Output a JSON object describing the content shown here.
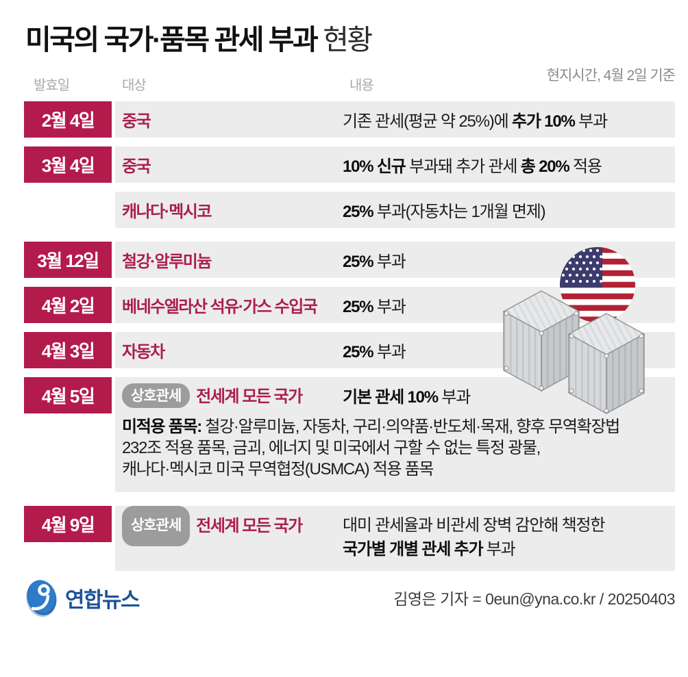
{
  "header": {
    "title": "미국의 국가·품목 관세 부과",
    "title_suffix": "현황",
    "timestamp": "현지시간, 4월 2일 기준",
    "columns": {
      "date": "발효일",
      "target": "대상",
      "content": "내용"
    }
  },
  "rows": [
    {
      "date": "2월 4일",
      "target": "중국",
      "type": "normal",
      "content": [
        {
          "t": "기존 관세(평균 약 25%)에 "
        },
        {
          "t": "추가 10%",
          "b": true
        },
        {
          "t": " 부과"
        }
      ]
    },
    {
      "date": "3월 4일",
      "target": "중국",
      "type": "normal",
      "content": [
        {
          "t": "10% 신규",
          "b": true
        },
        {
          "t": " 부과돼 추가 관세 "
        },
        {
          "t": "총 20%",
          "b": true
        },
        {
          "t": " 적용"
        }
      ]
    },
    {
      "date": null,
      "target": "캐나다·멕시코",
      "type": "normal",
      "content": [
        {
          "t": "25%",
          "b": true
        },
        {
          "t": " 부과(자동차는 1개월 면제)"
        }
      ]
    },
    {
      "date": "3월 12일",
      "target": "철강·알루미늄",
      "type": "normal",
      "content": [
        {
          "t": "25%",
          "b": true
        },
        {
          "t": " 부과"
        }
      ]
    },
    {
      "date": "4월 2일",
      "target": "베네수엘라산 석유·가스 수입국",
      "type": "normal",
      "content": [
        {
          "t": "25%",
          "b": true
        },
        {
          "t": " 부과"
        }
      ]
    },
    {
      "date": "4월 3일",
      "target": "자동차",
      "type": "normal",
      "content": [
        {
          "t": "25%",
          "b": true
        },
        {
          "t": " 부과"
        }
      ]
    },
    {
      "date": "4월 5일",
      "pill": "상호관세",
      "target": "전세계 모든 국가",
      "type": "note",
      "content": [
        {
          "t": "기본 관세 10%",
          "b": true
        },
        {
          "t": " 부과"
        }
      ],
      "note": [
        {
          "t": "미적용 품목:",
          "b": true
        },
        {
          "t": " 철강·알루미늄, 자동차, 구리·의약품·반도체·목재, 향후 무역확장법"
        },
        {
          "br": true
        },
        {
          "t": "232조 적용 품목, 금괴, 에너지 및 미국에서 구할 수 없는 특정 광물,"
        },
        {
          "br": true
        },
        {
          "t": "캐나다·멕시코 미국 무역협정(USMCA) 적용 품목"
        }
      ]
    },
    {
      "date": "4월 9일",
      "pill": "상호관세",
      "target": "전세계 모든 국가",
      "type": "twoline",
      "content": [
        {
          "t": "대미 관세율과 비관세 장벽 감안해 책정한"
        },
        {
          "br": true
        },
        {
          "t": "국가별 개별 관세 추가",
          "b": true
        },
        {
          "t": " 부과"
        }
      ]
    }
  ],
  "footer": {
    "agency": "연합뉴스",
    "byline": "김영은 기자 = 0eun@yna.co.kr / 20250403"
  },
  "colors": {
    "accent_crimson": "#b31b4d",
    "target_text": "#ab1e4d",
    "row_background": "#ececec",
    "pill_gray": "#9c9c9c",
    "flag_red": "#b22234",
    "flag_navy": "#3c3b6e",
    "container_gray": "#d4d6d8",
    "logo_blue": "#2e7cc9",
    "logo_text_blue": "#1d5296"
  }
}
